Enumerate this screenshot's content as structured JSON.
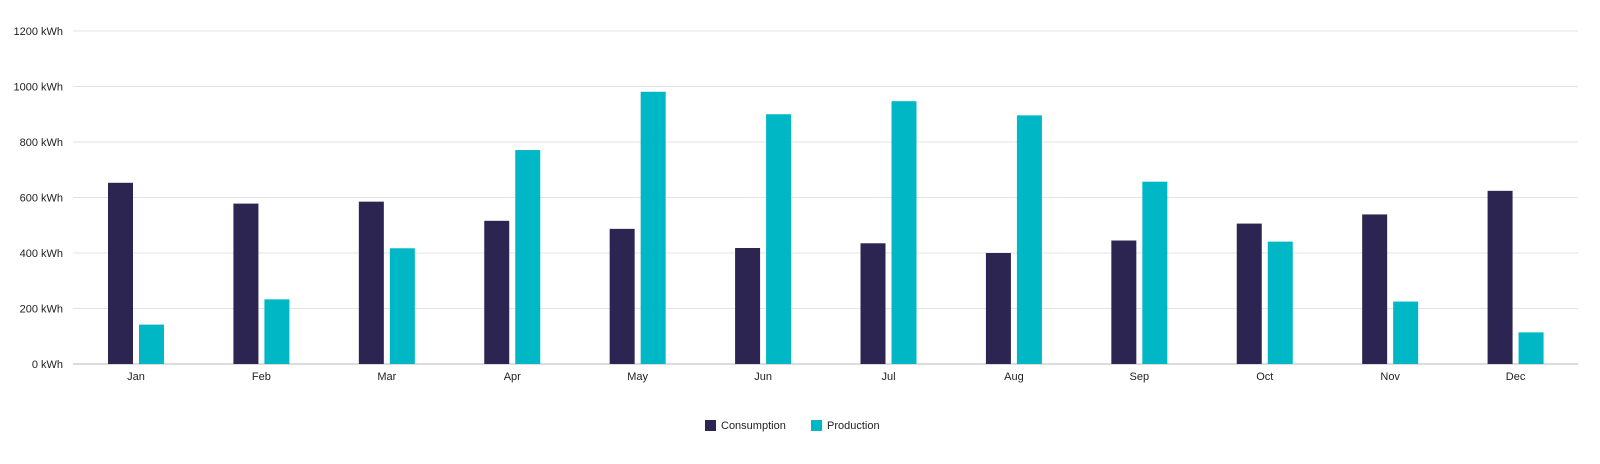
{
  "chart_data": {
    "type": "bar",
    "title": "",
    "xlabel": "",
    "ylabel": "",
    "unit": "kWh",
    "ylim": [
      0,
      1200
    ],
    "yticks": [
      0,
      200,
      400,
      600,
      800,
      1000,
      1200
    ],
    "ytick_labels": [
      "0 kWh",
      "200 kWh",
      "400 kWh",
      "600 kWh",
      "800 kWh",
      "1000 kWh",
      "1200 kWh"
    ],
    "grid": true,
    "legend_position": "bottom-center",
    "categories": [
      "Jan",
      "Feb",
      "Mar",
      "Apr",
      "May",
      "Jun",
      "Jul",
      "Aug",
      "Sep",
      "Oct",
      "Nov",
      "Dec"
    ],
    "series": [
      {
        "name": "Consumption",
        "color": "#2c2551",
        "values": [
          653,
          578,
          585,
          516,
          487,
          418,
          435,
          400,
          445,
          506,
          539,
          624
        ]
      },
      {
        "name": "Production",
        "color": "#00b7c6",
        "values": [
          142,
          233,
          417,
          771,
          981,
          900,
          947,
          896,
          657,
          441,
          225,
          114
        ]
      }
    ]
  }
}
